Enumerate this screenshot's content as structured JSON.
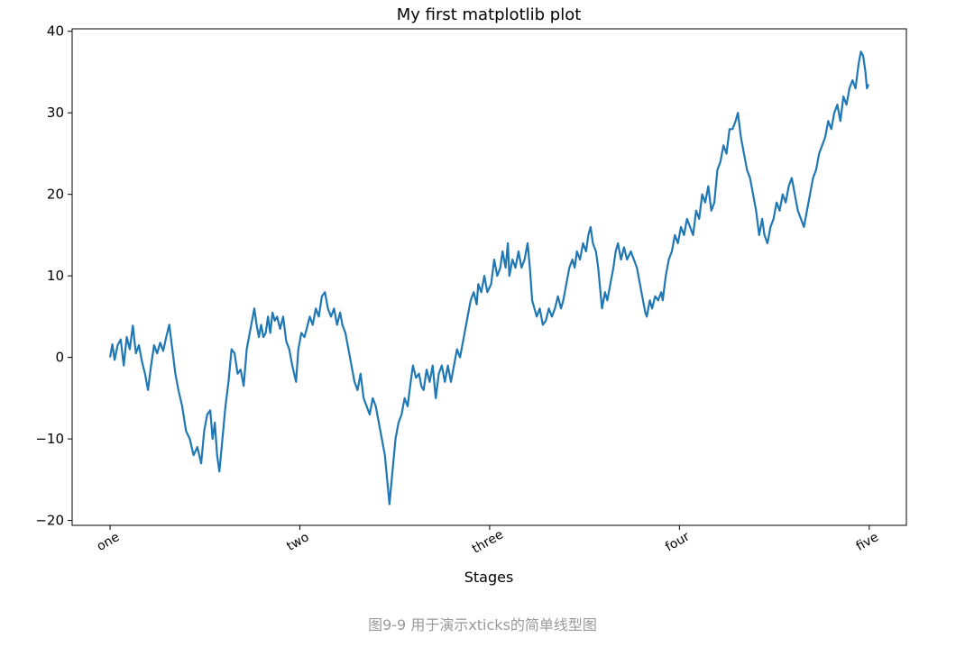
{
  "chart_data": {
    "type": "line",
    "title": "My first matplotlib plot",
    "x_label": "Stages",
    "caption": "图9-9 用于演示xticks的简单线型图",
    "color": "#1f77b4",
    "xlim": [
      -49.95,
      1048.95
    ],
    "ylim": [
      -20.6,
      40.3
    ],
    "xticks": [
      {
        "value": 0,
        "label": "one"
      },
      {
        "value": 250,
        "label": "two"
      },
      {
        "value": 500,
        "label": "three"
      },
      {
        "value": 750,
        "label": "four"
      },
      {
        "value": 1000,
        "label": "five"
      }
    ],
    "yticks": [
      {
        "value": -20,
        "label": "−20"
      },
      {
        "value": -10,
        "label": "−10"
      },
      0,
      10,
      20,
      30,
      40
    ],
    "x": [
      0,
      3,
      6,
      10,
      14,
      18,
      22,
      26,
      30,
      34,
      38,
      42,
      46,
      50,
      54,
      58,
      62,
      66,
      70,
      74,
      78,
      82,
      86,
      90,
      95,
      100,
      105,
      110,
      115,
      120,
      124,
      128,
      132,
      135,
      138,
      141,
      144,
      148,
      152,
      156,
      160,
      164,
      168,
      172,
      176,
      180,
      184,
      188,
      190,
      193,
      196,
      199,
      202,
      205,
      208,
      211,
      214,
      217,
      220,
      224,
      228,
      232,
      236,
      240,
      245,
      248,
      252,
      256,
      259,
      263,
      267,
      271,
      275,
      279,
      283,
      287,
      291,
      295,
      299,
      303,
      306,
      310,
      314,
      318,
      322,
      326,
      330,
      334,
      338,
      342,
      346,
      350,
      354,
      358,
      362,
      365,
      368,
      372,
      376,
      380,
      384,
      388,
      392,
      396,
      399,
      403,
      407,
      410,
      413,
      417,
      421,
      425,
      429,
      433,
      437,
      441,
      445,
      449,
      453,
      457,
      461,
      465,
      467,
      471,
      475,
      479,
      483,
      485,
      489,
      493,
      497,
      502,
      506,
      510,
      514,
      517,
      521,
      524,
      526,
      530,
      534,
      538,
      542,
      546,
      550,
      553,
      556,
      559,
      562,
      566,
      570,
      574,
      578,
      582,
      586,
      590,
      594,
      597,
      601,
      605,
      609,
      612,
      615,
      619,
      623,
      627,
      630,
      633,
      636,
      640,
      643,
      646,
      648,
      652,
      655,
      659,
      663,
      666,
      669,
      673,
      677,
      681,
      686,
      690,
      694,
      698,
      702,
      705,
      707,
      711,
      714,
      718,
      722,
      726,
      728,
      732,
      736,
      740,
      744,
      748,
      752,
      756,
      760,
      764,
      768,
      772,
      776,
      780,
      784,
      788,
      792,
      796,
      800,
      804,
      808,
      812,
      816,
      820,
      824,
      827,
      831,
      835,
      839,
      843,
      847,
      851,
      855,
      859,
      862,
      866,
      870,
      874,
      878,
      882,
      886,
      890,
      894,
      898,
      902,
      906,
      910,
      914,
      918,
      922,
      926,
      930,
      934,
      938,
      942,
      946,
      950,
      954,
      958,
      962,
      966,
      970,
      974,
      978,
      982,
      986,
      989,
      992,
      995,
      997,
      999
    ],
    "values": [
      0,
      1.6,
      -0.3,
      1.5,
      2.2,
      -1,
      2.5,
      1,
      3.9,
      0.5,
      1.5,
      -0.5,
      -2,
      -4,
      -1,
      1.5,
      0.5,
      1.8,
      0.8,
      2.5,
      4,
      1,
      -2,
      -4,
      -6,
      -9,
      -10,
      -12,
      -11,
      -13,
      -9,
      -7,
      -6.5,
      -10,
      -8,
      -12,
      -14,
      -10,
      -6,
      -3,
      1,
      0.5,
      -2,
      -1.5,
      -3.5,
      1,
      3,
      5,
      6,
      4,
      2.5,
      4,
      2.5,
      3,
      5,
      3,
      5.5,
      4.5,
      5,
      3.5,
      5,
      2,
      1,
      -1,
      -3,
      1,
      3,
      2.5,
      3.5,
      5,
      4,
      6,
      5,
      7.5,
      8,
      6,
      5,
      6,
      4,
      5.5,
      4,
      3,
      1,
      -1,
      -3,
      -4,
      -2,
      -5,
      -6,
      -7,
      -5,
      -6,
      -8,
      -10,
      -12,
      -15,
      -18,
      -14,
      -10,
      -8,
      -7,
      -5,
      -6,
      -3,
      -1,
      -2.5,
      -2,
      -3.5,
      -4,
      -1.5,
      -3,
      -1,
      -5,
      -2,
      -1,
      -3,
      -1,
      -3,
      -1,
      1,
      0,
      2,
      3,
      5,
      7,
      8,
      6.5,
      9,
      8,
      10,
      8,
      9,
      12,
      10,
      11,
      13,
      11,
      14,
      10,
      12,
      11,
      13,
      11,
      12,
      14,
      11,
      7,
      6,
      5,
      6,
      4,
      4.5,
      6,
      5,
      6,
      7.5,
      6,
      7,
      9,
      11,
      12,
      11,
      13,
      12,
      14,
      13,
      15,
      16,
      14,
      13,
      11,
      8,
      6,
      8,
      7,
      9,
      11,
      13,
      14,
      12,
      13.5,
      12,
      13,
      12,
      11,
      9,
      7,
      5.5,
      5,
      7,
      6,
      7.5,
      7,
      8,
      7,
      10,
      12,
      13,
      15,
      14,
      16,
      15,
      17,
      16,
      15,
      18,
      17,
      20,
      19,
      21,
      18,
      19,
      23,
      24,
      26,
      25,
      28,
      28,
      29,
      30,
      27,
      25,
      23,
      22,
      20,
      18,
      15,
      17,
      15,
      14,
      16,
      17,
      19,
      18,
      20,
      19,
      21,
      22,
      20,
      18,
      17,
      16,
      18,
      20,
      22,
      23,
      25,
      26,
      27,
      29,
      28,
      30,
      31,
      29,
      32,
      31,
      33,
      34,
      33,
      36,
      37.5,
      37,
      35,
      33,
      33.5
    ]
  }
}
